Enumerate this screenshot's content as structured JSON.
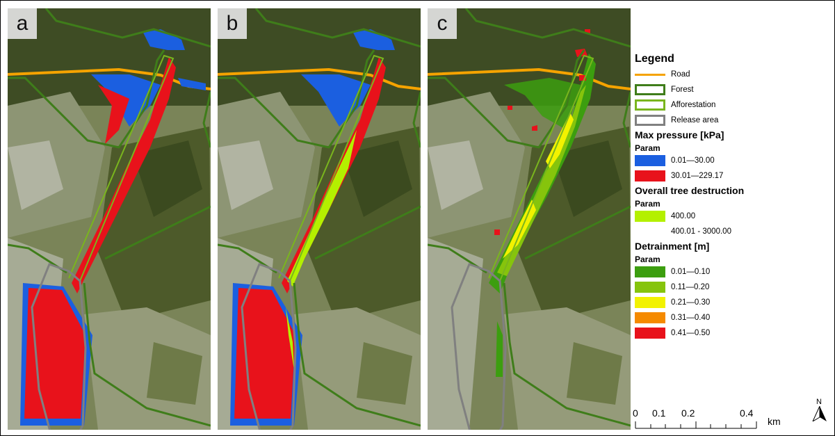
{
  "panels": [
    "a",
    "b",
    "c"
  ],
  "legend": {
    "title": "Legend",
    "road_label": "Road",
    "forest_label": "Forest",
    "afforestation_label": "Afforestation",
    "release_label": "Release area",
    "pressure_title": "Max pressure [kPa]",
    "pressure_param": "Param",
    "pressure_items": [
      "0.01—30.00",
      "30.01—229.17"
    ],
    "tree_title": "Overall tree destruction",
    "tree_param": "Param",
    "tree_items": [
      "400.00",
      "400.01 - 3000.00"
    ],
    "detrain_title": "Detrainment [m]",
    "detrain_param": "Param",
    "detrain_items": [
      "0.01—0.10",
      "0.11—0.20",
      "0.21—0.30",
      "0.31—0.40",
      "0.41—0.50"
    ]
  },
  "colors": {
    "road": "#f5a300",
    "forest": "#3f7d1a",
    "afforestation": "#7ab51e",
    "release": "#808080",
    "pressure": [
      "#1b5fe0",
      "#e8121b"
    ],
    "tree": [
      "#b4f000",
      "#ffffff"
    ],
    "detrain": [
      "#3c9e0f",
      "#86c40c",
      "#f2f200",
      "#f58a00",
      "#e8121b"
    ]
  },
  "scale": {
    "ticks": [
      "0",
      "0.1",
      "0.2",
      "0.4"
    ],
    "unit": "km"
  },
  "north_label": "N"
}
